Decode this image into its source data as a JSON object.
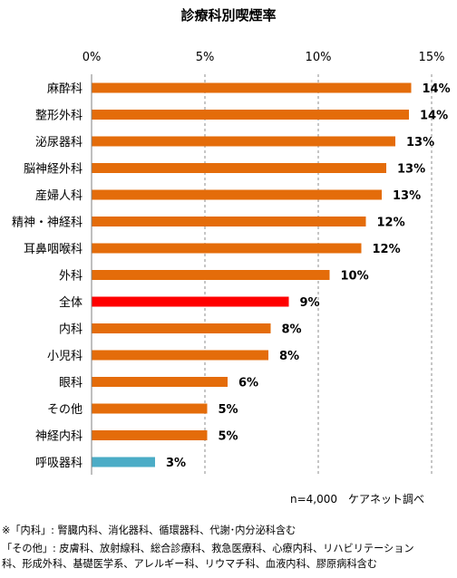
{
  "chart_data": {
    "type": "bar",
    "orientation": "horizontal",
    "title": "診療科別喫煙率",
    "x_axis_ticks": [
      "0%",
      "5%",
      "10%",
      "15%"
    ],
    "xlim": [
      0,
      15
    ],
    "grid": "vertical dashed",
    "categories": [
      "麻酔科",
      "整形外科",
      "泌尿器科",
      "脳神経外科",
      "産婦人科",
      "精神・神経科",
      "耳鼻咽喉科",
      "外科",
      "全体",
      "内科",
      "小児科",
      "眼科",
      "その他",
      "神経内科",
      "呼吸器科"
    ],
    "values": [
      14.1,
      14.0,
      13.4,
      13.0,
      12.8,
      12.1,
      11.9,
      10.5,
      8.7,
      7.9,
      7.8,
      6.0,
      5.1,
      5.1,
      2.8
    ],
    "value_labels": [
      "14%",
      "14%",
      "13%",
      "13%",
      "13%",
      "12%",
      "12%",
      "10%",
      "9%",
      "8%",
      "8%",
      "6%",
      "5%",
      "5%",
      "3%"
    ],
    "colors": {
      "default": "#e46c0a",
      "highlight_total": "#ff0000",
      "highlight_respiratory": "#4bacc6"
    },
    "bar_colors": [
      "default",
      "default",
      "default",
      "default",
      "default",
      "default",
      "default",
      "default",
      "highlight_total",
      "default",
      "default",
      "default",
      "default",
      "default",
      "highlight_respiratory"
    ]
  },
  "source_note": "n=4,000　ケアネット調べ",
  "footnotes": {
    "line1": "※「内科」: 腎臓内科、消化器科、循環器科、代謝･内分泌科含む",
    "line2": "「その他」: 皮膚科、放射線科、総合診療科、救急医療科、心療内科、リハビリテーション",
    "line3": "科、形成外科、基礎医学系、アレルギー科、リウマチ科、血液内科、膠原病科含む"
  }
}
